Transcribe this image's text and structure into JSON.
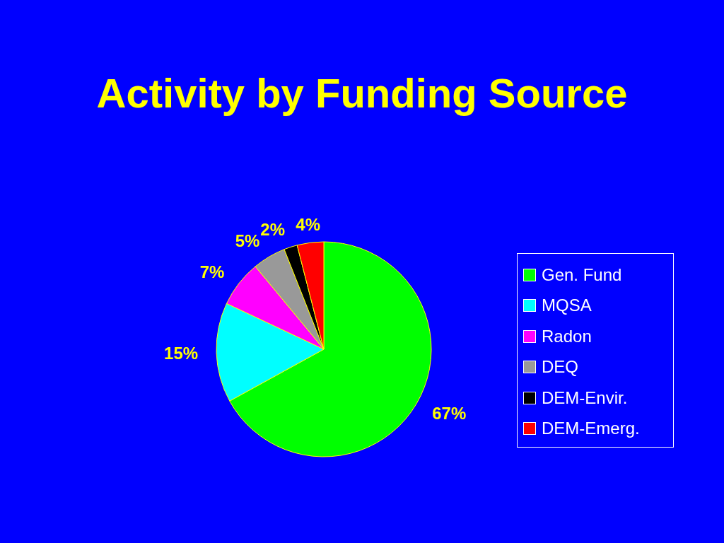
{
  "chart_data": {
    "type": "pie",
    "title": "Activity by Funding Source",
    "categories": [
      "Gen. Fund",
      "MQSA",
      "Radon",
      "DEQ",
      "DEM-Envir.",
      "DEM-Emerg."
    ],
    "values": [
      67,
      15,
      7,
      5,
      2,
      4
    ],
    "value_labels": [
      "67%",
      "15%",
      "7%",
      "5%",
      "2%",
      "4%"
    ],
    "colors": [
      "#00ff00",
      "#00ffff",
      "#ff00ff",
      "#999999",
      "#000000",
      "#ff0000"
    ],
    "legend": "right"
  }
}
